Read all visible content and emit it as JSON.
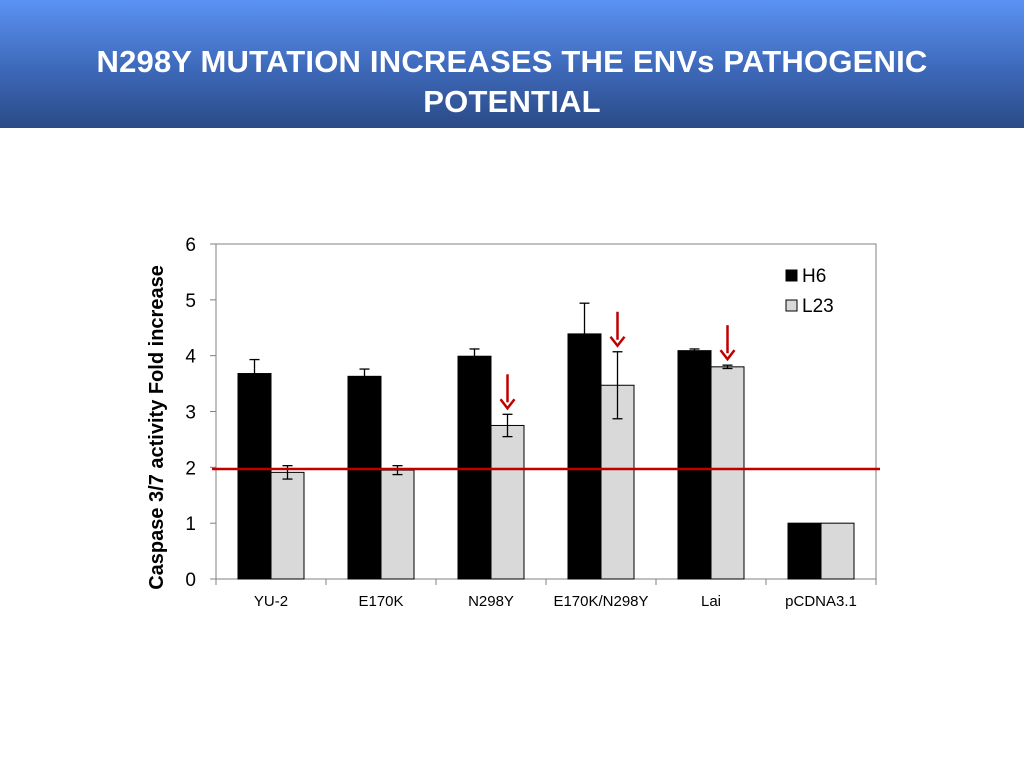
{
  "slide": {
    "title_line1": "N298Y MUTATION INCREASES THE ENVs PATHOGENIC",
    "title_line2": "POTENTIAL"
  },
  "chart_data": {
    "type": "bar",
    "title": "",
    "xlabel": "",
    "ylabel": "Caspase 3/7 activity Fold increase",
    "ylim": [
      0,
      6
    ],
    "yticks": [
      0,
      1,
      2,
      3,
      4,
      5,
      6
    ],
    "grid": false,
    "legend_position": "top-right",
    "categories": [
      "YU-2",
      "E170K",
      "N298Y",
      "E170K/N298Y",
      "Lai",
      "pCDNA3.1"
    ],
    "series": [
      {
        "name": "H6",
        "color": "#000000",
        "values": [
          3.68,
          3.63,
          3.99,
          4.39,
          4.09,
          1.0
        ],
        "errors": [
          0.25,
          0.13,
          0.13,
          0.55,
          0.03,
          0
        ]
      },
      {
        "name": "L23",
        "color": "#d9d9d9",
        "values": [
          1.91,
          1.95,
          2.75,
          3.47,
          3.8,
          1.0
        ],
        "errors": [
          0.12,
          0.08,
          0.2,
          0.6,
          0.03,
          0
        ]
      }
    ],
    "reference_line": {
      "y": 1.97,
      "color": "#c00000"
    },
    "arrows": [
      {
        "category": "N298Y",
        "series": "L23",
        "color": "#c00000"
      },
      {
        "category": "E170K/N298Y",
        "series": "L23",
        "color": "#c00000"
      },
      {
        "category": "Lai",
        "series": "L23",
        "color": "#c00000"
      }
    ]
  }
}
